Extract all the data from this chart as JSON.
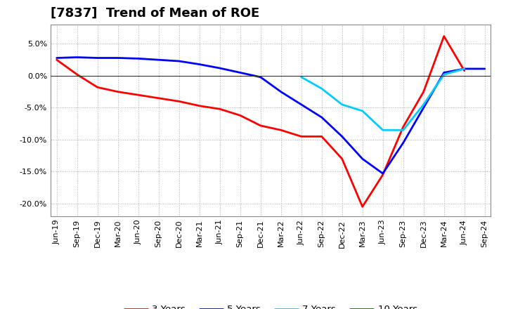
{
  "title": "[7837]  Trend of Mean of ROE",
  "background_color": "#ffffff",
  "plot_bg_color": "#ffffff",
  "grid_color": "#aaaaaa",
  "x_labels": [
    "Jun-19",
    "Sep-19",
    "Dec-19",
    "Mar-20",
    "Jun-20",
    "Sep-20",
    "Dec-20",
    "Mar-21",
    "Jun-21",
    "Sep-21",
    "Dec-21",
    "Mar-22",
    "Jun-22",
    "Sep-22",
    "Dec-22",
    "Mar-23",
    "Jun-23",
    "Sep-23",
    "Dec-23",
    "Mar-24",
    "Jun-24",
    "Sep-24"
  ],
  "series": {
    "3 Years": {
      "color": "#ff0000",
      "data_y": [
        2.5,
        0.2,
        -1.8,
        -2.5,
        -3.0,
        -3.5,
        -4.0,
        -4.7,
        -5.2,
        -6.2,
        -7.8,
        -8.5,
        -9.5,
        -9.5,
        -13.0,
        -20.5,
        -15.5,
        -8.0,
        -2.5,
        6.2,
        0.8,
        null
      ]
    },
    "5 Years": {
      "color": "#0000ff",
      "data_y": [
        2.8,
        2.9,
        2.8,
        2.8,
        2.7,
        2.5,
        2.3,
        1.8,
        1.2,
        0.5,
        -0.2,
        -2.5,
        -4.5,
        -6.5,
        -9.5,
        -13.0,
        -15.3,
        -10.5,
        -5.0,
        0.5,
        1.1,
        1.1
      ]
    },
    "7 Years": {
      "color": "#00ccff",
      "data_y": [
        null,
        null,
        null,
        null,
        null,
        null,
        null,
        null,
        null,
        null,
        null,
        null,
        -0.2,
        -2.0,
        -4.5,
        -5.5,
        -8.5,
        -8.5,
        -4.5,
        0.2,
        1.1,
        null
      ]
    },
    "10 Years": {
      "color": "#007700",
      "data_y": [
        null,
        null,
        null,
        null,
        null,
        null,
        null,
        null,
        null,
        null,
        null,
        null,
        null,
        null,
        null,
        null,
        null,
        null,
        null,
        null,
        null,
        null
      ]
    }
  },
  "ylim": [
    -22,
    8
  ],
  "yticks": [
    5.0,
    0.0,
    -5.0,
    -10.0,
    -15.0,
    -20.0
  ],
  "title_fontsize": 13,
  "legend_fontsize": 9.5,
  "tick_fontsize": 8
}
